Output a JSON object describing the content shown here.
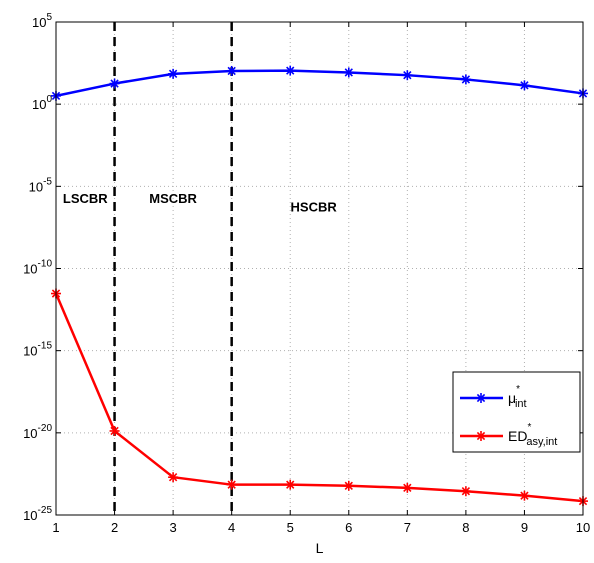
{
  "chart_data": {
    "type": "line",
    "xlabel": "L",
    "ylabel": "",
    "x": [
      1,
      2,
      3,
      4,
      5,
      6,
      7,
      8,
      9,
      10
    ],
    "xlim": [
      1,
      10
    ],
    "ylim": [
      1e-25,
      100000.0
    ],
    "y_scale": "log",
    "grid": true,
    "x_ticks": [
      "1",
      "2",
      "3",
      "4",
      "5",
      "6",
      "7",
      "8",
      "9",
      "10"
    ],
    "y_ticks": [
      {
        "base": "10",
        "exp": "-25",
        "value": 1e-25
      },
      {
        "base": "10",
        "exp": "-20",
        "value": 1e-20
      },
      {
        "base": "10",
        "exp": "-15",
        "value": 1e-15
      },
      {
        "base": "10",
        "exp": "-10",
        "value": 1e-10
      },
      {
        "base": "10",
        "exp": "-5",
        "value": 1e-05
      },
      {
        "base": "10",
        "exp": "0",
        "value": 1
      },
      {
        "base": "10",
        "exp": "5",
        "value": 100000.0
      }
    ],
    "series": [
      {
        "name_main": "μ",
        "name_sup": "*",
        "name_sub": "int",
        "color": "#0000ff",
        "marker": "asterisk",
        "values": [
          3.2,
          18,
          70,
          105,
          110,
          85,
          58,
          32,
          14,
          4.5
        ]
      },
      {
        "name_main": "ED",
        "name_sup": "*",
        "name_sub": "asy,int",
        "color": "#ff0000",
        "marker": "asterisk",
        "values": [
          3e-12,
          1.3e-20,
          2e-23,
          7e-24,
          7e-24,
          6e-24,
          4.5e-24,
          2.8e-24,
          1.5e-24,
          7e-25
        ]
      }
    ],
    "vertical_lines": [
      {
        "x": 2,
        "style": "dashed",
        "color": "#000000"
      },
      {
        "x": 4,
        "style": "dashed",
        "color": "#000000"
      }
    ],
    "annotations": [
      {
        "text": "LSCBR",
        "x": 1.5,
        "y": 1e-06
      },
      {
        "text": "MSCBR",
        "x": 3.0,
        "y": 1e-06
      },
      {
        "text": "HSCBR",
        "x": 5.4,
        "y": 3e-07
      }
    ],
    "legend_position": "bottom-right"
  }
}
